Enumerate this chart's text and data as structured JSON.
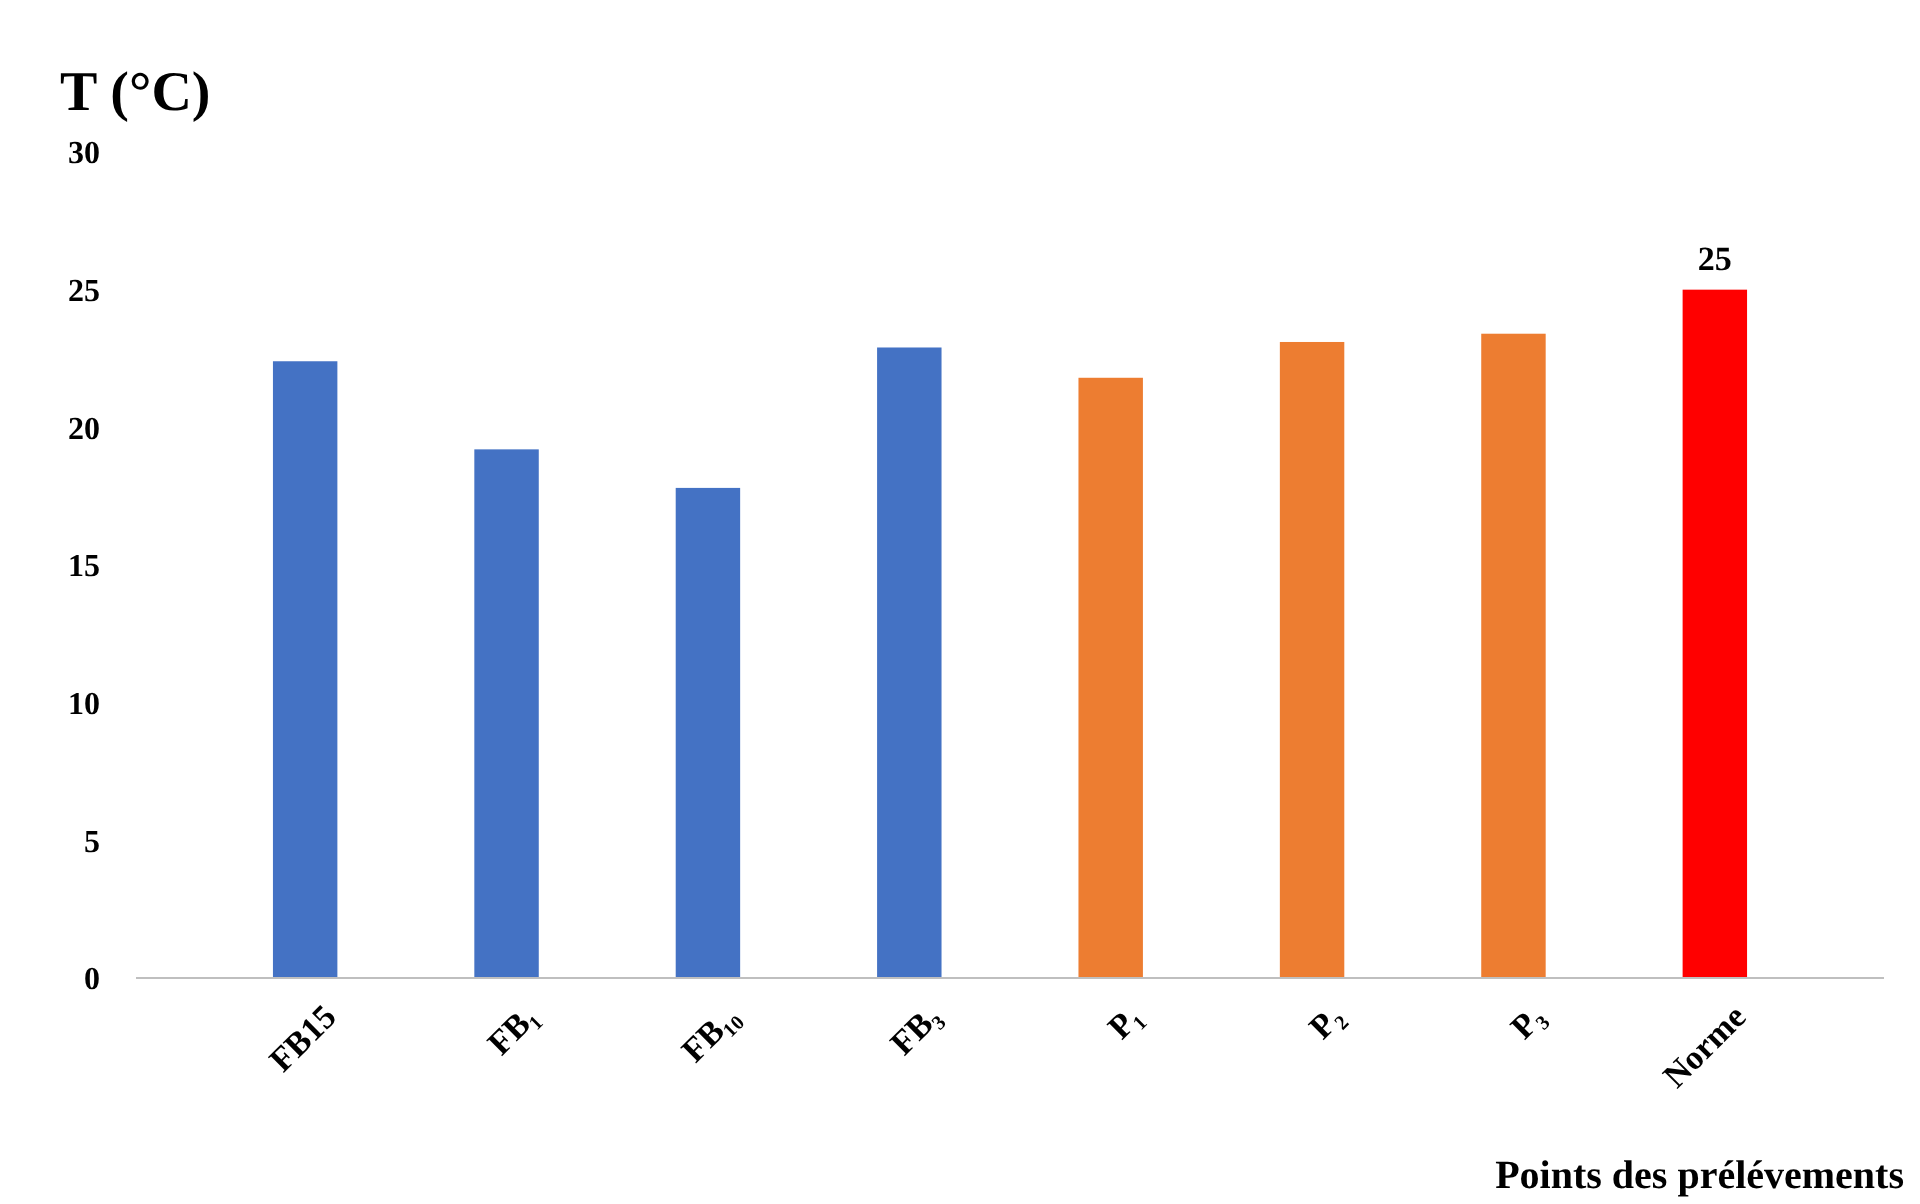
{
  "chart_data": {
    "type": "bar",
    "ylabel": "T (°C)",
    "xlabel": "Points des prélévements",
    "categories": [
      "FB15",
      "FB₁",
      "FB₁₀",
      "FB₃",
      "P₁",
      "P₂",
      "P₃",
      "Norme"
    ],
    "values": [
      22.4,
      19.2,
      17.8,
      22.9,
      21.8,
      23.1,
      23.4,
      25
    ],
    "colors": [
      "#4472c4",
      "#4472c4",
      "#4472c4",
      "#4472c4",
      "#ed7d31",
      "#ed7d31",
      "#ed7d31",
      "#ff0000"
    ],
    "value_labels": [
      null,
      null,
      null,
      null,
      null,
      null,
      null,
      "25"
    ],
    "ylim": [
      0,
      30
    ],
    "yticks": [
      0,
      5,
      10,
      15,
      20,
      25,
      30
    ],
    "grid": false
  }
}
